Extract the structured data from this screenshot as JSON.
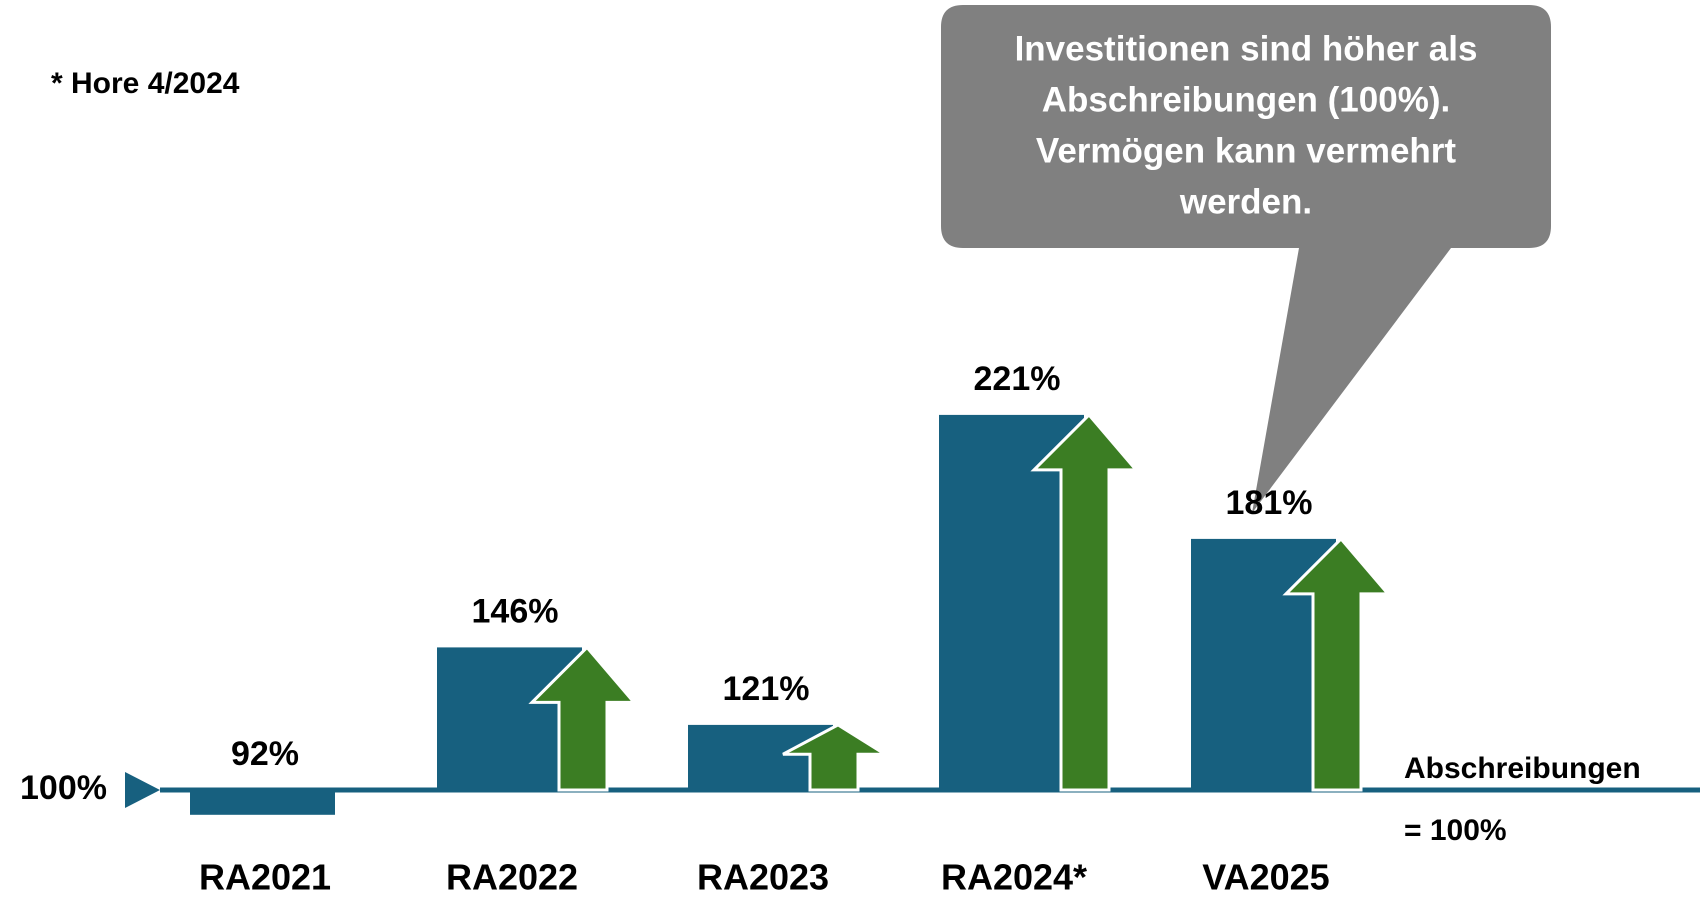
{
  "chart_data": {
    "type": "bar",
    "note": "* Hore 4/2024",
    "callout": [
      "Investitionen sind höher als",
      "Abschreibungen (100%).",
      "Vermögen kann vermehrt",
      "werden."
    ],
    "categories": [
      "RA2021",
      "RA2022",
      "RA2023",
      "RA2024*",
      "VA2025"
    ],
    "values": [
      92,
      146,
      121,
      221,
      181
    ],
    "value_labels": [
      "92%",
      "146%",
      "121%",
      "221%",
      "181%"
    ],
    "reference": {
      "value": 100,
      "label": "100%"
    },
    "reference_caption": [
      "Abschreibungen",
      "= 100%"
    ],
    "color": "#17607f",
    "arrow_color": "#3b7d23",
    "ylim": [
      80,
      240
    ]
  }
}
